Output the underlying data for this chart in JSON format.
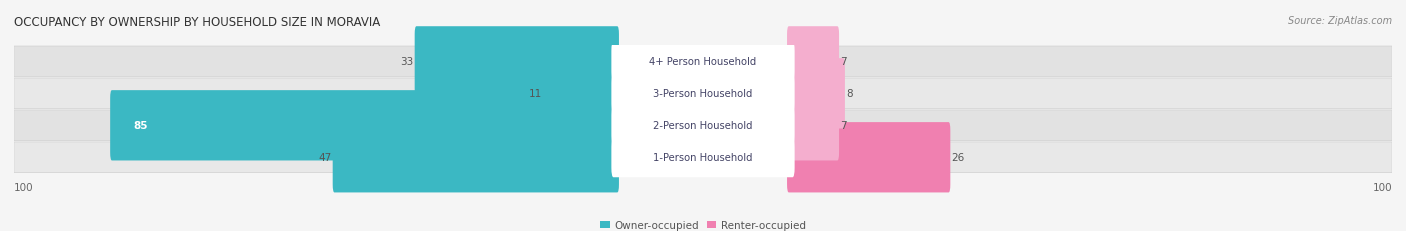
{
  "title": "OCCUPANCY BY OWNERSHIP BY HOUSEHOLD SIZE IN MORAVIA",
  "source": "Source: ZipAtlas.com",
  "categories": [
    "1-Person Household",
    "2-Person Household",
    "3-Person Household",
    "4+ Person Household"
  ],
  "owner_values": [
    47,
    85,
    11,
    33
  ],
  "renter_values": [
    26,
    7,
    8,
    7
  ],
  "max_scale": 100,
  "owner_color": "#3BB8C3",
  "renter_color": "#F080B0",
  "renter_color_light": "#F4AECE",
  "bg_color": "#f5f5f5",
  "row_bg_light": "#ebebeb",
  "row_bg_dark": "#e0e0e0",
  "title_fontsize": 8.5,
  "source_fontsize": 7,
  "bar_label_fontsize": 7.5,
  "legend_fontsize": 7.5,
  "axis_label_fontsize": 7.5,
  "category_fontsize": 7.2
}
